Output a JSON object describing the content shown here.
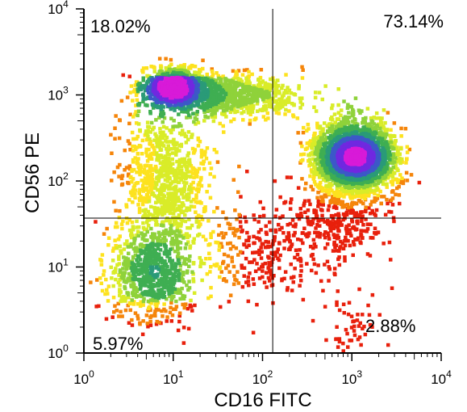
{
  "chart_data": {
    "type": "scatter",
    "subtype": "flow-cytometry density dot plot",
    "xlabel": "CD16 FITC",
    "ylabel": "CD56 PE",
    "x_scale": "log",
    "y_scale": "log",
    "xlim": [
      1,
      10000
    ],
    "ylim": [
      1,
      10000
    ],
    "x_ticks": [
      {
        "value": 1,
        "base": "10",
        "exp": "0"
      },
      {
        "value": 10,
        "base": "10",
        "exp": "1"
      },
      {
        "value": 100,
        "base": "10",
        "exp": "2"
      },
      {
        "value": 1000,
        "base": "10",
        "exp": "3"
      },
      {
        "value": 10000,
        "base": "10",
        "exp": "4"
      }
    ],
    "y_ticks": [
      {
        "value": 1,
        "base": "10",
        "exp": "0"
      },
      {
        "value": 10,
        "base": "10",
        "exp": "1"
      },
      {
        "value": 100,
        "base": "10",
        "exp": "2"
      },
      {
        "value": 1000,
        "base": "10",
        "exp": "3"
      },
      {
        "value": 10000,
        "base": "10",
        "exp": "4"
      }
    ],
    "gates": {
      "x": 130,
      "y": 37
    },
    "quadrants": [
      {
        "name": "upper-left",
        "label": "18.02%",
        "value": 18.02
      },
      {
        "name": "upper-right",
        "label": "73.14%",
        "value": 73.14
      },
      {
        "name": "lower-left",
        "label": "5.97%",
        "value": 5.97
      },
      {
        "name": "lower-right",
        "label": "2.88%",
        "value": 2.88
      }
    ],
    "populations": [
      {
        "center": [
          1100,
          190
        ],
        "spread": [
          0.32,
          0.26
        ]
      },
      {
        "center": [
          10,
          1300
        ],
        "spread": [
          0.18,
          0.14
        ]
      },
      {
        "center": [
          5,
          9
        ],
        "spread": [
          0.35,
          0.35
        ]
      }
    ],
    "density_colors": [
      "#e8200c",
      "#f5850a",
      "#fde21e",
      "#d9ec28",
      "#8fd23a",
      "#3fae52",
      "#2a9a78",
      "#3c58c8",
      "#7028e0",
      "#d81ad8"
    ],
    "grid": false,
    "legend": "none"
  }
}
